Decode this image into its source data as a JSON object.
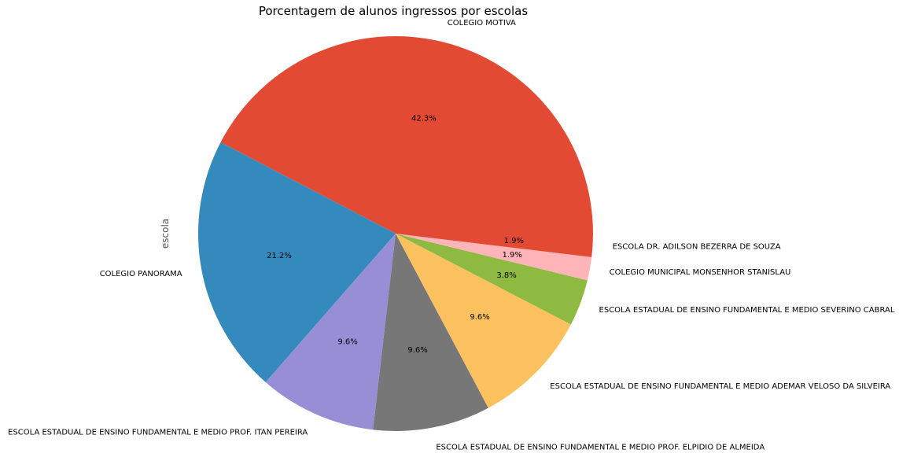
{
  "chart_data": {
    "type": "pie",
    "title": "Porcentagem de alunos ingressos por escolas",
    "ylabel": "escola",
    "start_angle_deg": 0,
    "direction": "counterclockwise",
    "slices": [
      {
        "label": "COLEGIO MOTIVA",
        "value": 42.3,
        "pct_label": "42.3%",
        "color": "#E24A33"
      },
      {
        "label": "COLEGIO PANORAMA",
        "value": 21.2,
        "pct_label": "21.2%",
        "color": "#348ABD"
      },
      {
        "label": "ESCOLA ESTADUAL DE ENSINO FUNDAMENTAL E MEDIO PROF. ITAN PEREIRA",
        "value": 9.6,
        "pct_label": "9.6%",
        "color": "#988ED5"
      },
      {
        "label": "ESCOLA ESTADUAL DE ENSINO FUNDAMENTAL E MEDIO PROF. ELPIDIO DE ALMEIDA",
        "value": 9.6,
        "pct_label": "9.6%",
        "color": "#777777"
      },
      {
        "label": "ESCOLA ESTADUAL DE ENSINO FUNDAMENTAL E MEDIO ADEMAR VELOSO DA SILVEIRA",
        "value": 9.6,
        "pct_label": "9.6%",
        "color": "#FBC15E"
      },
      {
        "label": "ESCOLA ESTADUAL DE ENSINO FUNDAMENTAL E MEDIO SEVERINO CABRAL",
        "value": 3.8,
        "pct_label": "3.8%",
        "color": "#8EBA42"
      },
      {
        "label": "COLEGIO MUNICIPAL MONSENHOR STANISLAU",
        "value": 1.9,
        "pct_label": "1.9%",
        "color": "#FFB5B8"
      },
      {
        "label": "ESCOLA DR. ADILSON BEZERRA DE SOUZA",
        "value": 1.9,
        "pct_label": "1.9%",
        "color": "#E24A33"
      }
    ]
  }
}
